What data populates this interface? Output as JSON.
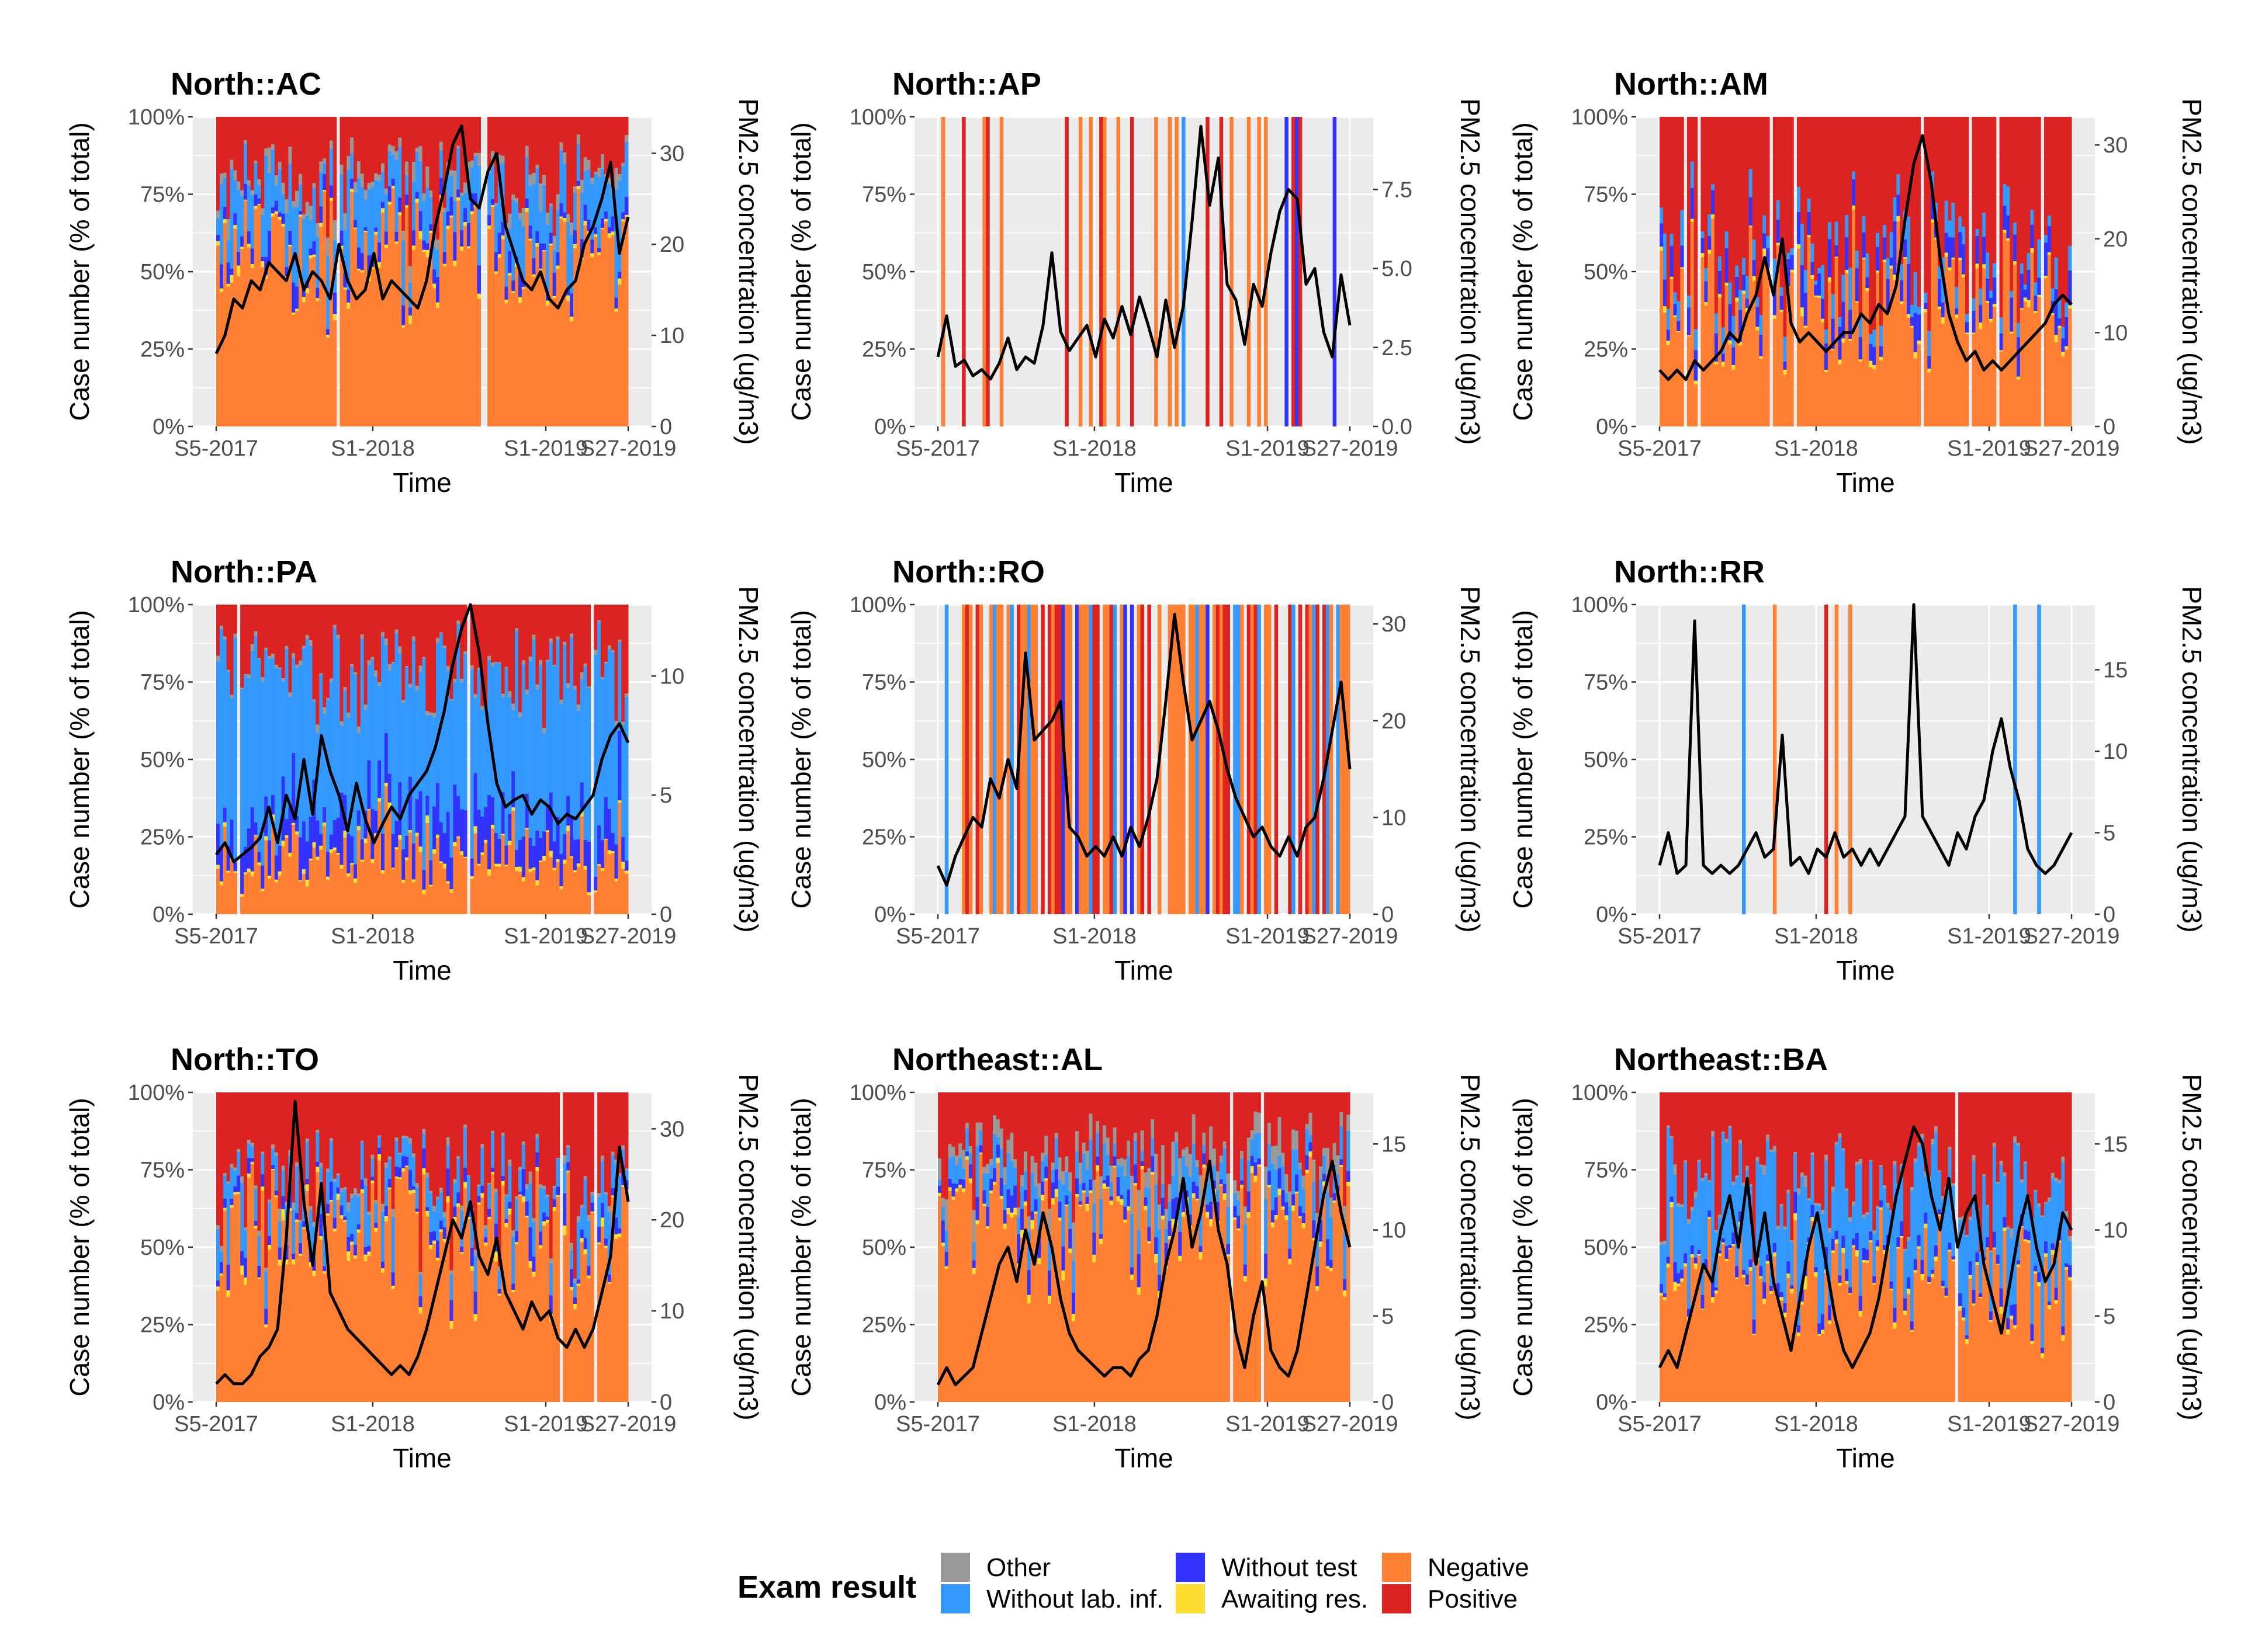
{
  "figure": {
    "legend": {
      "title": "Exam result",
      "entries": [
        {
          "key": "other",
          "label": "Other",
          "color": "#999999"
        },
        {
          "key": "without_lab",
          "label": "Without lab. inf.",
          "color": "#3399ff"
        },
        {
          "key": "without_test",
          "label": "Without test",
          "color": "#3333ff"
        },
        {
          "key": "awaiting",
          "label": "Awaiting res.",
          "color": "#ffdd33"
        },
        {
          "key": "negative",
          "label": "Negative",
          "color": "#ff7f33"
        },
        {
          "key": "positive",
          "label": "Positive",
          "color": "#dd2222"
        }
      ]
    }
  },
  "chart_data": [
    {
      "type": "bar",
      "title": "North::AC",
      "xlabel": "Time",
      "ylabel": "Case number (% of total)",
      "y2label": "PM2.5 concentration (ug/m3)",
      "x_ticks": [
        "S5-2017",
        "S1-2018",
        "S1-2019",
        "S27-2019"
      ],
      "y_ticks": [
        "0%",
        "25%",
        "50%",
        "75%",
        "100%"
      ],
      "y2_ticks": [
        "0",
        "10",
        "20",
        "30"
      ],
      "y2lim": [
        0,
        34
      ],
      "stacked_share_weekly_avg": {
        "negative": 60,
        "without_lab": 14,
        "without_test": 4,
        "awaiting": 1,
        "other": 3,
        "positive": 18
      },
      "series": [
        {
          "name": "PM2.5",
          "type": "line",
          "values": [
            8,
            10,
            14,
            13,
            16,
            15,
            18,
            17,
            16,
            19,
            15,
            17,
            16,
            14,
            20,
            16,
            14,
            15,
            19,
            14,
            16,
            15,
            14,
            13,
            16,
            22,
            26,
            31,
            33,
            25,
            24,
            28,
            30,
            22,
            19,
            16,
            15,
            17,
            14,
            13,
            15,
            16,
            20,
            22,
            25,
            29,
            19,
            23
          ]
        }
      ]
    },
    {
      "type": "bar",
      "title": "North::AP",
      "xlabel": "Time",
      "ylabel": "Case number (% of total)",
      "y2label": "PM2.5 concentration (ug/m3)",
      "x_ticks": [
        "S5-2017",
        "S1-2018",
        "S1-2019",
        "S27-2019"
      ],
      "y_ticks": [
        "0%",
        "25%",
        "50%",
        "75%",
        "100%"
      ],
      "y2_ticks": [
        "0.0",
        "2.5",
        "5.0",
        "7.5"
      ],
      "y2lim": [
        0,
        9.8
      ],
      "stacked_share_weekly_avg": {
        "negative": 8,
        "positive": 6,
        "without_lab": 2,
        "without_test": 2,
        "awaiting": 0,
        "other": 0
      },
      "series": [
        {
          "name": "PM2.5",
          "type": "line",
          "values": [
            2.2,
            3.5,
            1.9,
            2.1,
            1.6,
            1.8,
            1.5,
            2.0,
            2.8,
            1.8,
            2.2,
            2.0,
            3.2,
            5.5,
            3.0,
            2.4,
            2.8,
            3.2,
            2.2,
            3.4,
            2.8,
            3.8,
            2.9,
            4.1,
            3.2,
            2.2,
            4.0,
            2.5,
            3.8,
            6.5,
            9.5,
            7.0,
            8.5,
            4.5,
            4.0,
            2.6,
            4.5,
            3.8,
            5.5,
            6.8,
            7.5,
            7.2,
            4.5,
            5.0,
            3.0,
            2.2,
            4.8,
            3.2
          ]
        }
      ]
    },
    {
      "type": "bar",
      "title": "North::AM",
      "xlabel": "Time",
      "ylabel": "Case number (% of total)",
      "y2label": "PM2.5 concentration (ug/m3)",
      "x_ticks": [
        "S5-2017",
        "S1-2018",
        "S1-2019",
        "S27-2019"
      ],
      "y_ticks": [
        "0%",
        "25%",
        "50%",
        "75%",
        "100%"
      ],
      "y2_ticks": [
        "0",
        "10",
        "20",
        "30"
      ],
      "y2lim": [
        0,
        33
      ],
      "stacked_share_weekly_avg": {
        "negative": 40,
        "positive": 46,
        "without_lab": 6,
        "without_test": 7,
        "awaiting": 1,
        "other": 0
      },
      "series": [
        {
          "name": "PM2.5",
          "type": "line",
          "values": [
            6,
            5,
            6,
            5,
            7,
            6,
            7,
            8,
            10,
            9,
            12,
            14,
            18,
            14,
            20,
            11,
            9,
            10,
            9,
            8,
            9,
            10,
            10,
            12,
            11,
            13,
            12,
            15,
            22,
            28,
            31,
            26,
            18,
            12,
            9,
            7,
            8,
            6,
            7,
            6,
            7,
            8,
            9,
            10,
            11,
            13,
            14,
            13
          ]
        }
      ]
    },
    {
      "type": "bar",
      "title": "North::PA",
      "xlabel": "Time",
      "ylabel": "Case number (% of total)",
      "y2label": "PM2.5 concentration (ug/m3)",
      "x_ticks": [
        "S5-2017",
        "S1-2018",
        "S1-2019",
        "S27-2019"
      ],
      "y_ticks": [
        "0%",
        "25%",
        "50%",
        "75%",
        "100%"
      ],
      "y2_ticks": [
        "0",
        "5",
        "10"
      ],
      "y2lim": [
        0,
        13
      ],
      "stacked_share_weekly_avg": {
        "negative": 18,
        "without_lab": 50,
        "positive": 20,
        "without_test": 10,
        "awaiting": 1,
        "other": 1
      },
      "series": [
        {
          "name": "PM2.5",
          "type": "line",
          "values": [
            2.5,
            3.0,
            2.2,
            2.5,
            2.8,
            3.2,
            4.5,
            3.0,
            5.0,
            4.0,
            6.5,
            4.2,
            7.5,
            6.0,
            5.0,
            3.5,
            5.5,
            4.0,
            3.0,
            3.8,
            4.5,
            4.0,
            5.0,
            5.5,
            6.0,
            7.0,
            8.5,
            10.5,
            12.0,
            13.0,
            11.0,
            8.0,
            5.5,
            4.5,
            4.8,
            5.0,
            4.2,
            4.8,
            4.5,
            3.8,
            4.2,
            4.0,
            4.5,
            5.0,
            6.5,
            7.5,
            8.0,
            7.2
          ]
        }
      ]
    },
    {
      "type": "bar",
      "title": "North::RO",
      "xlabel": "Time",
      "ylabel": "Case number (% of total)",
      "y2label": "PM2.5 concentration (ug/m3)",
      "x_ticks": [
        "S5-2017",
        "S1-2018",
        "S1-2019",
        "S27-2019"
      ],
      "y_ticks": [
        "0%",
        "25%",
        "50%",
        "75%",
        "100%"
      ],
      "y2_ticks": [
        "0",
        "10",
        "20",
        "30"
      ],
      "y2_lim_note": "right axis range",
      "y2lim": [
        0,
        32
      ],
      "stacked_share_weekly_avg": {
        "negative": 45,
        "positive": 10,
        "without_lab": 8,
        "without_test": 3,
        "awaiting": 1,
        "other": 1
      },
      "series": [
        {
          "name": "PM2.5",
          "type": "line",
          "values": [
            5,
            3,
            6,
            8,
            10,
            9,
            14,
            12,
            16,
            13,
            27,
            18,
            19,
            20,
            22,
            9,
            8,
            6,
            7,
            6,
            8,
            6,
            9,
            7,
            10,
            14,
            22,
            31,
            24,
            18,
            20,
            22,
            19,
            15,
            12,
            10,
            8,
            9,
            7,
            6,
            8,
            6,
            9,
            10,
            14,
            19,
            24,
            15
          ]
        }
      ]
    },
    {
      "type": "bar",
      "title": "North::RR",
      "xlabel": "Time",
      "ylabel": "Case number (% of total)",
      "y2label": "PM2.5 concentration (ug/m3)",
      "x_ticks": [
        "S5-2017",
        "S1-2018",
        "S1-2019",
        "S27-2019"
      ],
      "y_ticks": [
        "0%",
        "25%",
        "50%",
        "75%",
        "100%"
      ],
      "y2_ticks": [
        "0",
        "5",
        "10",
        "15"
      ],
      "y2lim": [
        0,
        19
      ],
      "stacked_share_weekly_avg": {
        "negative": 4,
        "positive": 2,
        "without_lab": 1,
        "without_test": 0,
        "awaiting": 1,
        "other": 0
      },
      "series": [
        {
          "name": "PM2.5",
          "type": "line",
          "values": [
            3,
            5,
            2.5,
            3,
            18,
            3,
            2.5,
            3,
            2.5,
            3,
            4,
            5,
            3.5,
            4,
            11,
            3,
            3.5,
            2.5,
            4,
            3.5,
            5,
            3.5,
            4,
            3,
            4,
            3,
            4,
            5,
            6,
            19,
            6,
            5,
            4,
            3,
            5,
            4,
            6,
            7,
            10,
            12,
            9,
            7,
            4,
            3,
            2.5,
            3,
            4,
            5
          ]
        }
      ]
    },
    {
      "type": "bar",
      "title": "North::TO",
      "xlabel": "Time",
      "ylabel": "Case number (% of total)",
      "y2label": "PM2.5 concentration (ug/m3)",
      "x_ticks": [
        "S5-2017",
        "S1-2018",
        "S1-2019",
        "S27-2019"
      ],
      "y_ticks": [
        "0%",
        "25%",
        "50%",
        "75%",
        "100%"
      ],
      "y2_ticks": [
        "0",
        "10",
        "20",
        "30"
      ],
      "y2lim": [
        0,
        34
      ],
      "stacked_share_weekly_avg": {
        "negative": 50,
        "positive": 25,
        "without_lab": 8,
        "without_test": 3,
        "awaiting": 1,
        "other": 1
      },
      "series": [
        {
          "name": "PM2.5",
          "type": "line",
          "values": [
            2,
            3,
            2,
            2,
            3,
            5,
            6,
            8,
            18,
            33,
            22,
            15,
            24,
            12,
            10,
            8,
            7,
            6,
            5,
            4,
            3,
            4,
            3,
            5,
            8,
            12,
            16,
            20,
            18,
            22,
            16,
            14,
            18,
            12,
            10,
            8,
            11,
            9,
            10,
            7,
            6,
            8,
            6,
            8,
            12,
            16,
            28,
            22
          ]
        }
      ]
    },
    {
      "type": "bar",
      "title": "Northeast::AL",
      "xlabel": "Time",
      "ylabel": "Case number (% of total)",
      "y2label": "PM2.5 concentration (ug/m3)",
      "x_ticks": [
        "S5-2017",
        "S1-2018",
        "S1-2019",
        "S27-2019"
      ],
      "y_ticks": [
        "0%",
        "25%",
        "50%",
        "75%",
        "100%"
      ],
      "y2_ticks": [
        "0",
        "5",
        "10",
        "15"
      ],
      "y2lim": [
        0,
        18
      ],
      "stacked_share_weekly_avg": {
        "negative": 45,
        "positive": 14,
        "without_lab": 6,
        "without_test": 3,
        "awaiting": 1,
        "other": 4
      },
      "series": [
        {
          "name": "PM2.5",
          "type": "line",
          "values": [
            1,
            2,
            1,
            1.5,
            2,
            4,
            6,
            8,
            9,
            7,
            10,
            8,
            11,
            9,
            6,
            4,
            3,
            2.5,
            2,
            1.5,
            2,
            2,
            1.5,
            2.5,
            3,
            5,
            8,
            10,
            13,
            9,
            11,
            14,
            10,
            8,
            4,
            2,
            5,
            7,
            3,
            2,
            1.5,
            3,
            6,
            9,
            12,
            14,
            11,
            9
          ]
        }
      ]
    },
    {
      "type": "bar",
      "title": "Northeast::BA",
      "xlabel": "Time",
      "ylabel": "Case number (% of total)",
      "y2label": "PM2.5 concentration (ug/m3)",
      "x_ticks": [
        "S5-2017",
        "S1-2018",
        "S1-2019",
        "S27-2019"
      ],
      "y_ticks": [
        "0%",
        "25%",
        "50%",
        "75%",
        "100%"
      ],
      "y2_ticks": [
        "0",
        "5",
        "10",
        "15"
      ],
      "y2lim": [
        0,
        18
      ],
      "stacked_share_weekly_avg": {
        "negative": 40,
        "positive": 30,
        "without_lab": 25,
        "without_test": 3,
        "awaiting": 1,
        "other": 1
      },
      "series": [
        {
          "name": "PM2.5",
          "type": "line",
          "values": [
            2,
            3,
            2,
            4,
            6,
            8,
            7,
            10,
            12,
            9,
            13,
            8,
            11,
            7,
            5,
            3,
            6,
            9,
            11,
            8,
            5,
            3,
            2,
            3,
            4,
            6,
            9,
            12,
            14,
            16,
            15,
            12,
            10,
            13,
            9,
            11,
            12,
            8,
            6,
            4,
            7,
            10,
            12,
            9,
            7,
            8,
            11,
            10
          ]
        }
      ]
    }
  ]
}
